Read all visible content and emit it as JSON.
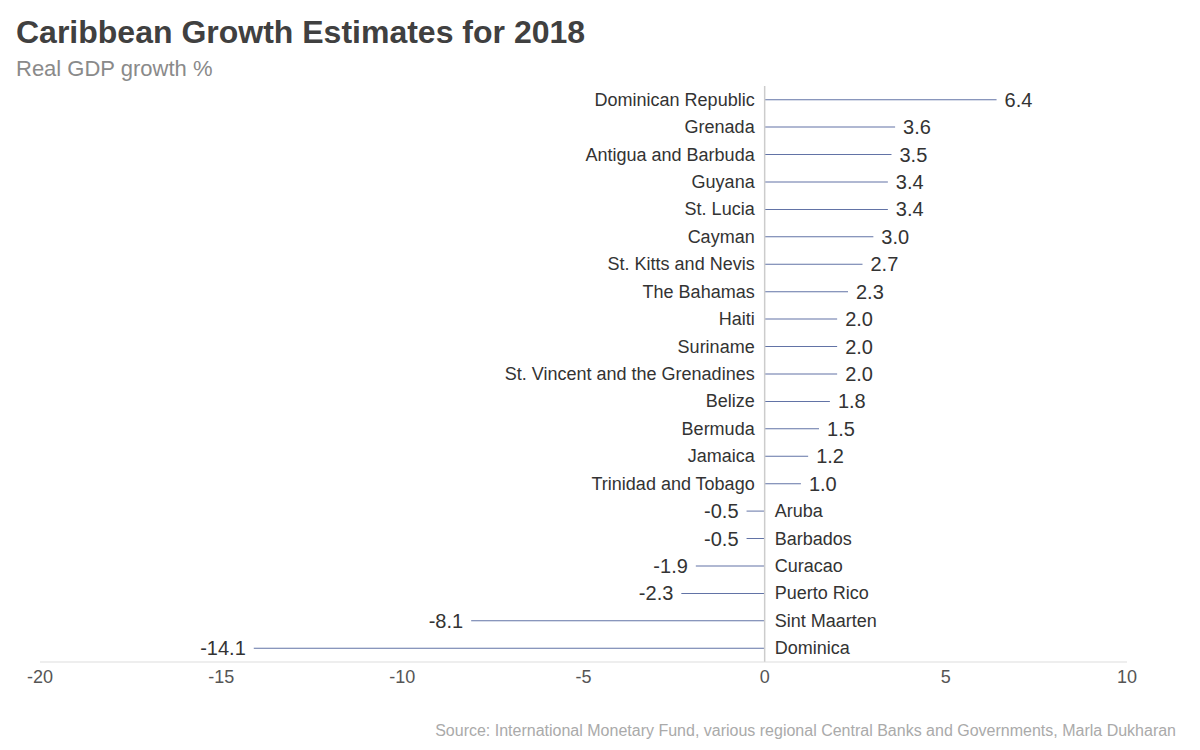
{
  "chart_data": {
    "type": "bar",
    "title": "Caribbean Growth Estimates for 2018",
    "subtitle": "Real GDP growth %",
    "source": "Source: International Monetary Fund, various regional Central Banks and Governments, Marla Dukharan",
    "orientation": "horizontal",
    "categories": [
      "Dominican Republic",
      "Grenada",
      "Antigua and Barbuda",
      "Guyana",
      "St. Lucia",
      "Cayman",
      "St. Kitts and Nevis",
      "The Bahamas",
      "Haiti",
      "Suriname",
      "St. Vincent and the Grenadines",
      "Belize",
      "Bermuda",
      "Jamaica",
      "Trinidad and Tobago",
      "Aruba",
      "Barbados",
      "Curacao",
      "Puerto Rico",
      "Sint Maarten",
      "Dominica"
    ],
    "values": [
      6.4,
      3.6,
      3.5,
      3.4,
      3.4,
      3.0,
      2.7,
      2.3,
      2.0,
      2.0,
      2.0,
      1.8,
      1.5,
      1.2,
      1.0,
      -0.5,
      -0.5,
      -1.9,
      -2.3,
      -8.1,
      -14.1
    ],
    "value_labels": [
      "6.4",
      "3.6",
      "3.5",
      "3.4",
      "3.4",
      "3.0",
      "2.7",
      "2.3",
      "2.0",
      "2.0",
      "2.0",
      "1.8",
      "1.5",
      "1.2",
      "1.0",
      "-0.5",
      "-0.5",
      "-1.9",
      "-2.3",
      "-8.1",
      "-14.1"
    ],
    "color": "#6273a6",
    "xlim": [
      -20,
      10
    ],
    "xticks": [
      -20,
      -15,
      -10,
      -5,
      0,
      5,
      10
    ],
    "data_labels": true,
    "grid": false
  }
}
